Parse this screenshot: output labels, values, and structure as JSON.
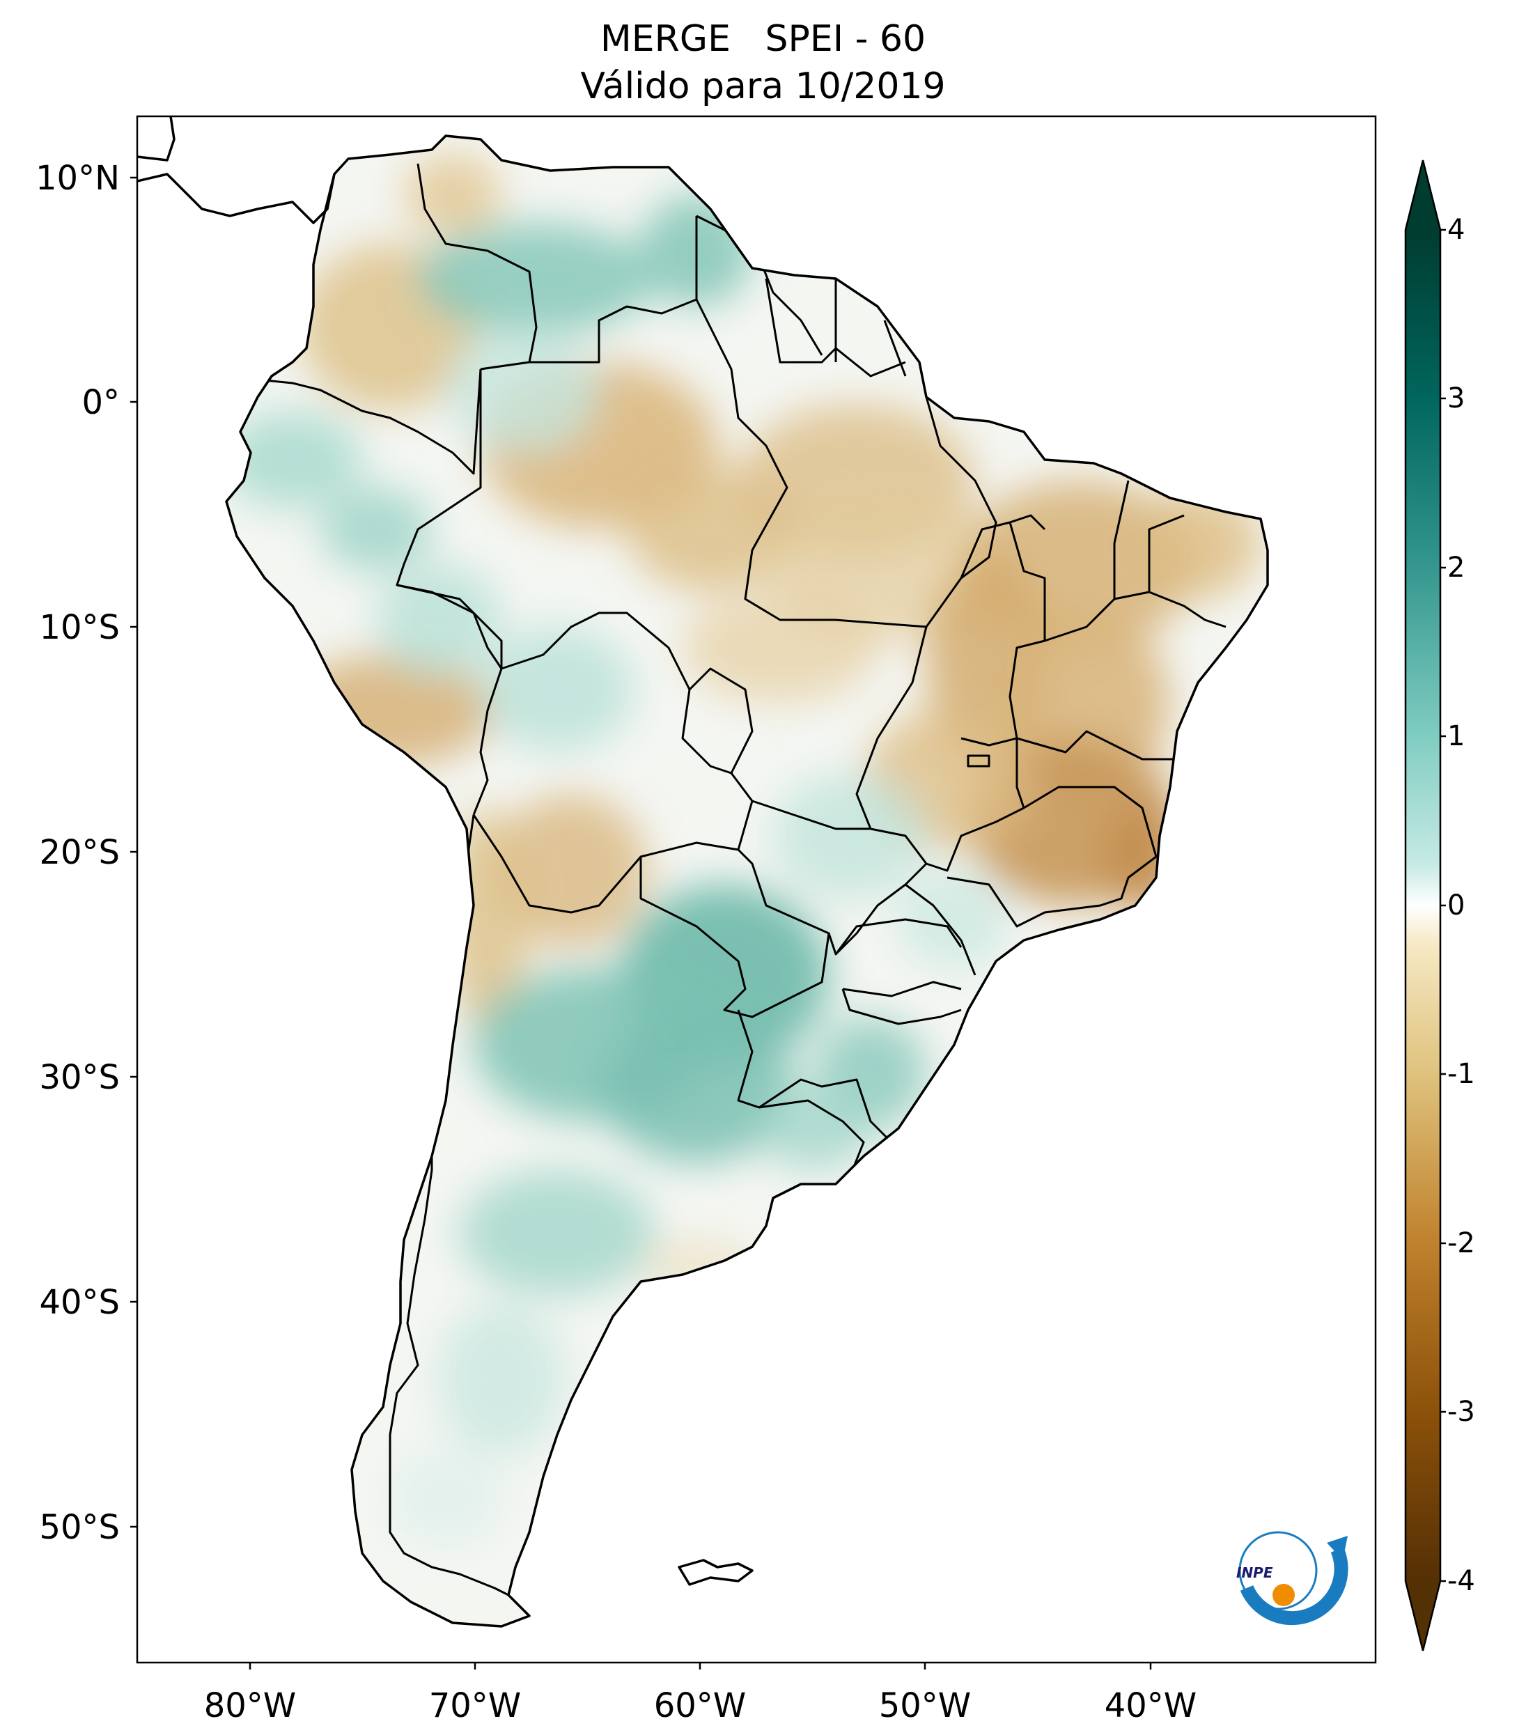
{
  "title": {
    "line1": "MERGE   SPEI - 60",
    "line2": "Válido para 10/2019"
  },
  "axes": {
    "lat_ticks": [
      "10°N",
      "0°",
      "10°S",
      "20°S",
      "30°S",
      "40°S",
      "50°S"
    ],
    "lon_ticks": [
      "80°W",
      "70°W",
      "60°W",
      "50°W",
      "40°W"
    ],
    "lon_range": [
      -85,
      -30
    ],
    "lat_range": [
      -56,
      13
    ]
  },
  "colorbar": {
    "ticks": [
      "4",
      "3",
      "2",
      "1",
      "0",
      "-1",
      "-2",
      "-3",
      "-4"
    ],
    "range": [
      -4,
      4
    ],
    "colormap": "BrBG",
    "extend": "both",
    "colors": {
      "min": "#543005",
      "low": "#bf812d",
      "mid_low": "#f6e8c3",
      "zero": "#ffffff",
      "mid_high": "#c7eae5",
      "high": "#35978f",
      "max": "#003c30"
    }
  },
  "logo": {
    "text": "INPE",
    "icon": "inpe-logo-icon"
  },
  "map": {
    "region": "South America",
    "borders": "country and state borders",
    "field": "SPEI-60 anomaly shading"
  }
}
